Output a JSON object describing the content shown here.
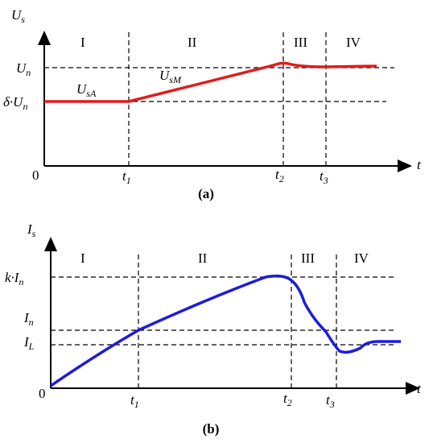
{
  "panel_a": {
    "y_axis_label": {
      "main": "U",
      "sub": "s"
    },
    "regions": [
      "I",
      "II",
      "III",
      "IV"
    ],
    "levels": [
      {
        "main": "U",
        "sub": "n"
      },
      {
        "main": "δ·U",
        "sub": "n"
      }
    ],
    "curve_labels": [
      {
        "main": "U",
        "sub": "sA"
      },
      {
        "main": "U",
        "sub": "sM"
      }
    ],
    "origin": "0",
    "times": [
      {
        "main": "t",
        "sub": "1"
      },
      {
        "main": "t",
        "sub": "2"
      },
      {
        "main": "t",
        "sub": "3"
      }
    ],
    "x_axis_label": "t",
    "caption": "(a)"
  },
  "panel_b": {
    "y_axis_label": {
      "main": "I",
      "sub": "s"
    },
    "regions": [
      "I",
      "II",
      "III",
      "IV"
    ],
    "levels": [
      {
        "main": "k·I",
        "sub": "n"
      },
      {
        "main": "I",
        "sub": "n"
      },
      {
        "main": "I",
        "sub": "L"
      }
    ],
    "origin": "0",
    "times": [
      {
        "main": "t",
        "sub": "1"
      },
      {
        "main": "t",
        "sub": "2"
      },
      {
        "main": "t",
        "sub": "3"
      }
    ],
    "x_axis_label": "t",
    "caption": "(b)"
  }
}
